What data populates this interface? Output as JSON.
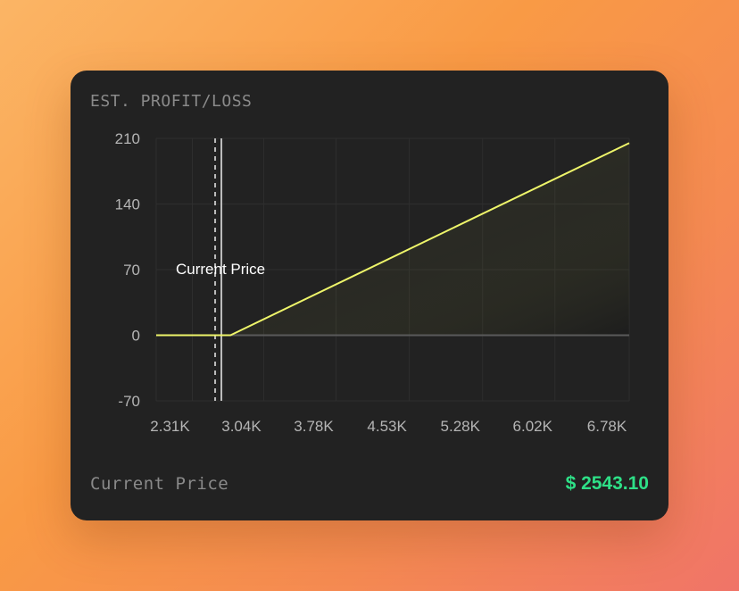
{
  "card": {
    "title": "EST. PROFIT/LOSS",
    "footer_label": "Current Price",
    "footer_value": "$ 2543.10",
    "colors": {
      "background": "#222222",
      "value": "#2ee087",
      "line": "#eef56a"
    }
  },
  "chart_data": {
    "type": "line",
    "title": "EST. PROFIT/LOSS",
    "xlabel": "",
    "ylabel": "",
    "x_tick_labels": [
      "2.31K",
      "3.04K",
      "3.78K",
      "4.53K",
      "5.28K",
      "6.02K",
      "6.78K"
    ],
    "x_ticks": [
      2310,
      3040,
      3780,
      4530,
      5280,
      6020,
      6780
    ],
    "y_ticks": [
      210,
      140,
      70,
      0,
      -70
    ],
    "xlim": [
      1940,
      6780
    ],
    "ylim": [
      -70,
      210
    ],
    "series": [
      {
        "points": [
          [
            1940,
            0
          ],
          [
            2700,
            0
          ],
          [
            6780,
            205
          ]
        ]
      }
    ],
    "current_price": 2543.1,
    "annotation": "Current Price",
    "grid": true,
    "legend": "none"
  }
}
